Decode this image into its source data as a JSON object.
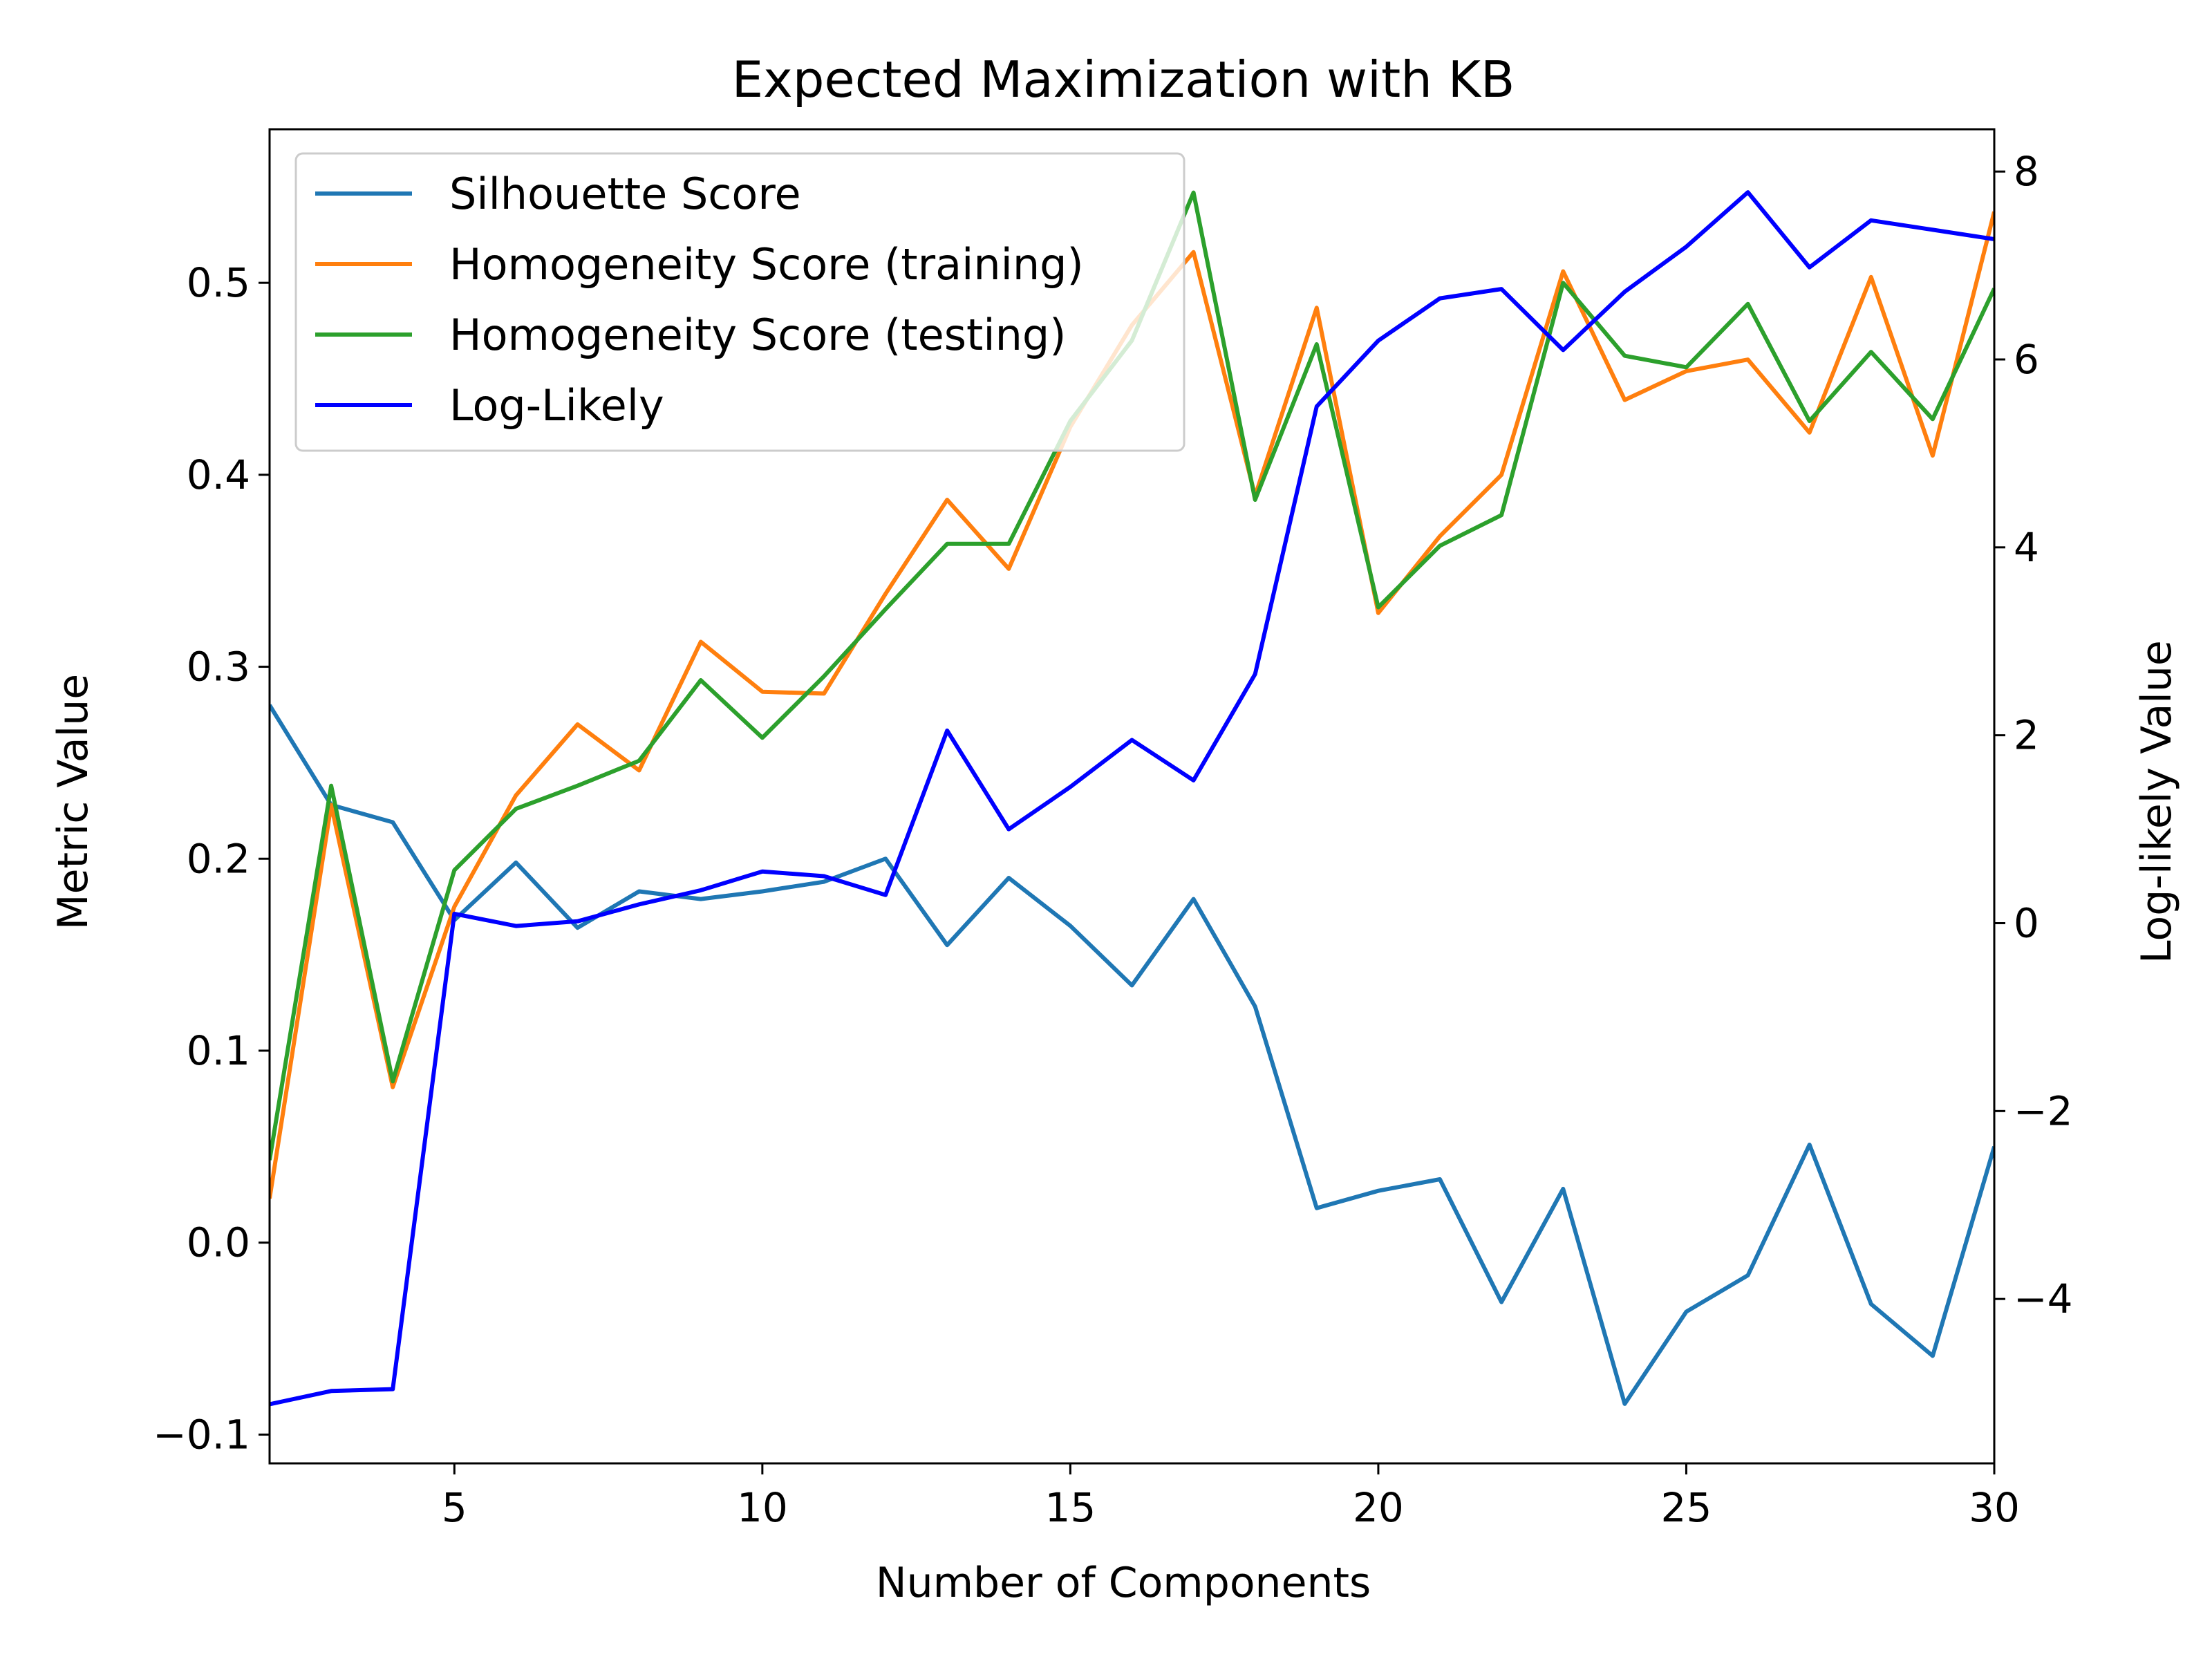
{
  "chart_data": {
    "type": "line",
    "title": "Expected Maximization with KB",
    "xlabel": "Number of Components",
    "ylabel": "Metric Value",
    "y2label": "Log-likely Value",
    "xlim": [
      2,
      30
    ],
    "ylim": [
      -0.115,
      0.58
    ],
    "y2lim": [
      -5.75,
      8.45
    ],
    "xticks": [
      5,
      10,
      15,
      20,
      25,
      30
    ],
    "yticks": [
      -0.1,
      0.0,
      0.1,
      0.2,
      0.3,
      0.4,
      0.5
    ],
    "y2ticks": [
      -4,
      -2,
      0,
      2,
      4,
      6,
      8
    ],
    "grid": false,
    "legend_position": "top-left",
    "x": [
      2,
      3,
      4,
      5,
      6,
      7,
      8,
      9,
      10,
      11,
      12,
      13,
      14,
      15,
      16,
      17,
      18,
      19,
      20,
      21,
      22,
      23,
      24,
      25,
      26,
      27,
      28,
      29,
      30
    ],
    "series": [
      {
        "name": "Silhouette Score",
        "color": "#1f77b4",
        "axis": "left",
        "values": [
          0.28,
          0.228,
          0.219,
          0.168,
          0.198,
          0.164,
          0.183,
          0.179,
          0.183,
          0.188,
          0.2,
          0.155,
          0.19,
          0.165,
          0.134,
          0.179,
          0.123,
          0.018,
          0.027,
          0.033,
          -0.031,
          0.028,
          -0.084,
          -0.036,
          -0.017,
          0.051,
          -0.032,
          -0.059,
          0.05
        ]
      },
      {
        "name": "Homogeneity Score (training)",
        "color": "#ff7f0e",
        "axis": "left",
        "values": [
          0.023,
          0.228,
          0.081,
          0.175,
          0.233,
          0.27,
          0.246,
          0.313,
          0.287,
          0.286,
          0.338,
          0.387,
          0.351,
          0.425,
          0.478,
          0.516,
          0.389,
          0.487,
          0.328,
          0.368,
          0.4,
          0.506,
          0.439,
          0.454,
          0.46,
          0.422,
          0.503,
          0.41,
          0.537
        ]
      },
      {
        "name": "Homogeneity Score (testing)",
        "color": "#2ca02c",
        "axis": "left",
        "values": [
          0.043,
          0.238,
          0.084,
          0.194,
          0.226,
          0.238,
          0.251,
          0.293,
          0.263,
          0.295,
          0.33,
          0.364,
          0.364,
          0.428,
          0.47,
          0.547,
          0.387,
          0.468,
          0.331,
          0.363,
          0.379,
          0.5,
          0.462,
          0.456,
          0.489,
          0.428,
          0.464,
          0.429,
          0.497
        ]
      },
      {
        "name": "Log-Likely",
        "color": "#0000ff",
        "axis": "right",
        "values": [
          -5.12,
          -4.98,
          -4.96,
          0.1,
          -0.03,
          0.02,
          0.2,
          0.35,
          0.55,
          0.5,
          0.3,
          2.05,
          1.0,
          1.45,
          1.95,
          1.52,
          2.65,
          5.5,
          6.2,
          6.65,
          6.75,
          6.1,
          6.72,
          7.2,
          7.78,
          6.98,
          7.48,
          7.38,
          7.28
        ]
      }
    ]
  }
}
